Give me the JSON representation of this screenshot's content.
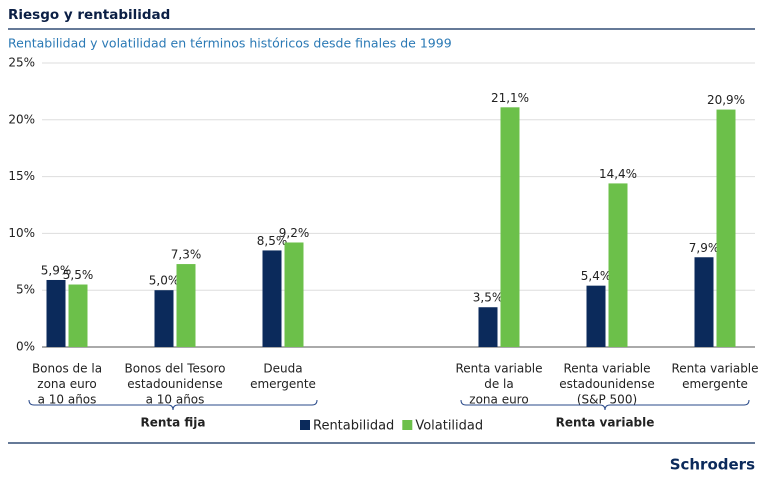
{
  "chart_data": {
    "type": "bar",
    "title": "Riesgo y rentabilidad",
    "subtitle": "Rentabilidad y volatilidad en términos históricos desde finales de 1999",
    "brand": "Schroders",
    "categories": [
      [
        "Bonos de la",
        "zona euro",
        "a 10 años"
      ],
      [
        "Bonos del Tesoro",
        "estadounidense",
        "a 10 años"
      ],
      [
        "Deuda",
        "emergente"
      ],
      [
        "Renta variable",
        "de la",
        "zona euro"
      ],
      [
        "Renta variable",
        "estadounidense",
        "(S&P 500)"
      ],
      [
        "Renta variable",
        "emergente"
      ]
    ],
    "groups": [
      "Renta fija",
      "Renta variable"
    ],
    "series": [
      {
        "name": "Rentabilidad",
        "color": "#0b2a5b",
        "values": [
          5.9,
          5.0,
          8.5,
          3.5,
          5.4,
          7.9
        ],
        "value_labels": [
          "5,9%",
          "5,0%",
          "8,5%",
          "3,5%",
          "5,4%",
          "7,9%"
        ]
      },
      {
        "name": "Volatilidad",
        "color": "#6cc04a",
        "values": [
          5.5,
          7.3,
          9.2,
          21.1,
          14.4,
          20.9
        ],
        "value_labels": [
          "5,5%",
          "7,3%",
          "9,2%",
          "21,1%",
          "14,4%",
          "20,9%"
        ]
      }
    ],
    "ylim": [
      0,
      25
    ],
    "yticks": [
      {
        "value": 0,
        "label": "0%"
      },
      {
        "value": 5,
        "label": "5%"
      },
      {
        "value": 10,
        "label": "10%"
      },
      {
        "value": 15,
        "label": "15%"
      },
      {
        "value": 20,
        "label": "20%"
      },
      {
        "value": 25,
        "label": "25%"
      }
    ],
    "grid": true
  }
}
